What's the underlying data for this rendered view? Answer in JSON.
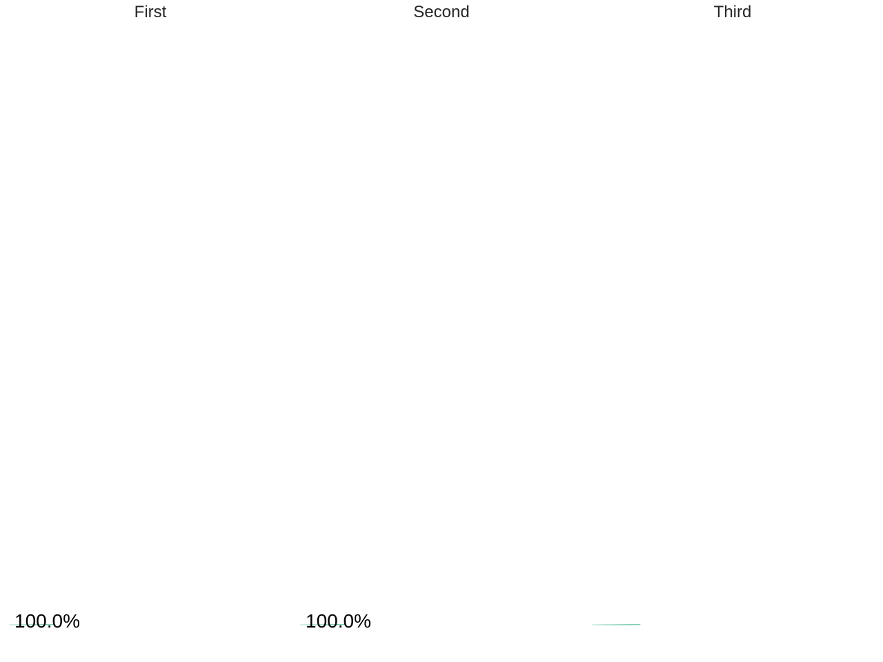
{
  "chart_data": [
    {
      "type": "pie",
      "title": "First",
      "slices": [
        {
          "value": 100.0,
          "label": "100.0%"
        }
      ],
      "colors": [
        "#66c2a5"
      ]
    },
    {
      "type": "pie",
      "title": "Second",
      "slices": [
        {
          "value": 100.0,
          "label": "100.0%"
        }
      ],
      "colors": [
        "#66c2a5"
      ]
    },
    {
      "type": "pie",
      "title": "Third",
      "slices": [],
      "colors": [
        "#66c2a5"
      ]
    }
  ]
}
